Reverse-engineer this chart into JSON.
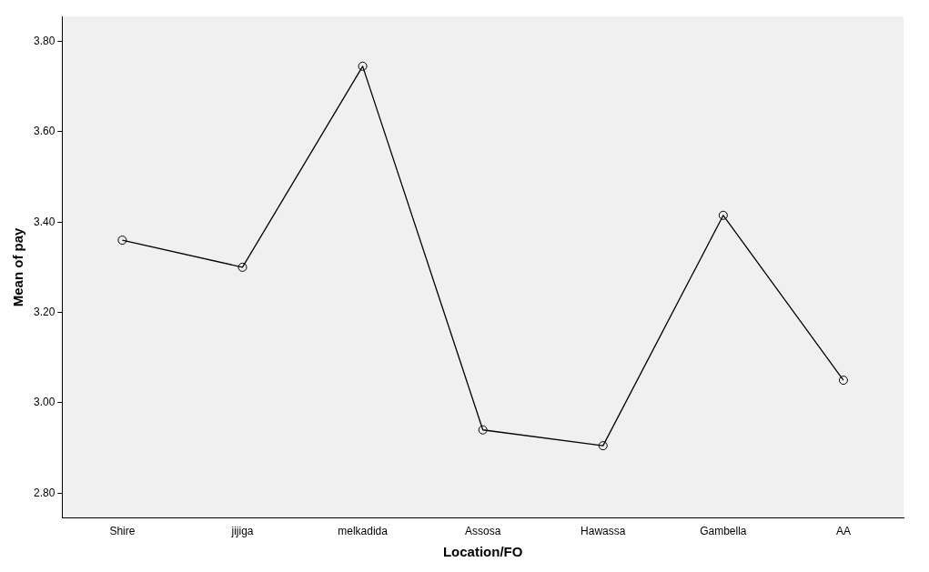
{
  "chart_data": {
    "type": "line",
    "xlabel": "Location/FO",
    "ylabel": "Mean of pay",
    "categories": [
      "Shire",
      "jijiga",
      "melkadida",
      "Assosa",
      "Hawassa",
      "Gambella",
      "AA"
    ],
    "series": [
      {
        "color": "#000000",
        "values": [
          3.36,
          3.3,
          3.745,
          2.94,
          2.905,
          3.415,
          3.05
        ]
      }
    ],
    "ylim": [
      2.745,
      3.855
    ],
    "yticks": [
      {
        "value": 2.8,
        "label": "2.80"
      },
      {
        "value": 3.0,
        "label": "3.00"
      },
      {
        "value": 3.2,
        "label": "3.20"
      },
      {
        "value": 3.4,
        "label": "3.40"
      },
      {
        "value": 3.6,
        "label": "3.60"
      },
      {
        "value": 3.8,
        "label": "3.80"
      }
    ],
    "marker": "circle",
    "line_style": "solid",
    "grid": false,
    "legend": false
  }
}
